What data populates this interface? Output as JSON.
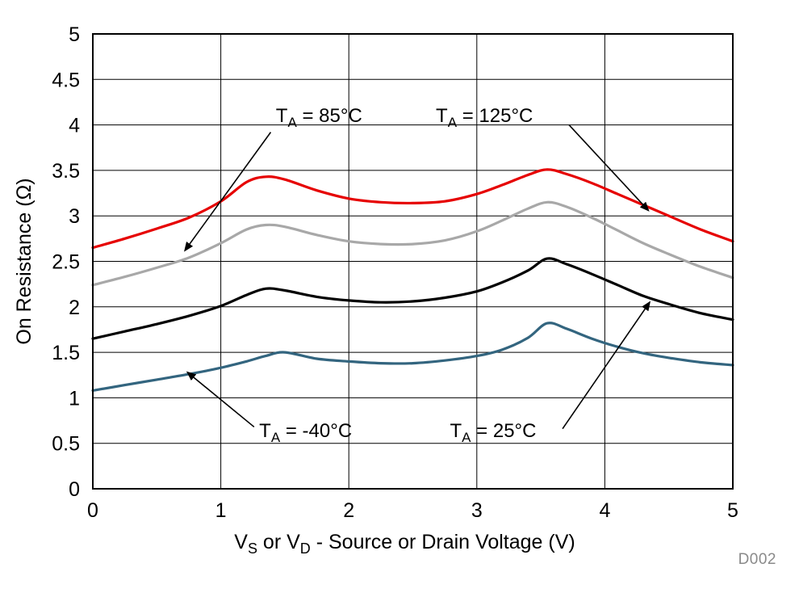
{
  "chart_data": {
    "type": "line",
    "title": "",
    "xlabel_text": "VS or VD - Source or Drain Voltage (V)",
    "xlabel_parts": [
      {
        "t": "V"
      },
      {
        "s": "S"
      },
      {
        "t": " or V"
      },
      {
        "s": "D"
      },
      {
        "t": " - Source or Drain Voltage (V)"
      }
    ],
    "ylabel": "On Resistance (Ω)",
    "xlim": [
      0,
      5
    ],
    "ylim": [
      0,
      5
    ],
    "x_ticks": [
      "0",
      "1",
      "2",
      "3",
      "4",
      "5"
    ],
    "y_ticks": [
      "0",
      "0.5",
      "1",
      "1.5",
      "2",
      "2.5",
      "3",
      "3.5",
      "4",
      "4.5",
      "5"
    ],
    "grid": {
      "x": [
        1,
        2,
        3,
        4
      ],
      "y": [
        0.5,
        1,
        1.5,
        2,
        2.5,
        3,
        3.5,
        4,
        4.5
      ]
    },
    "colors": {
      "grid": "#000000",
      "axis": "#000000",
      "annotation": "#000000",
      "watermark": "#8a8a8a"
    },
    "watermark": "D002",
    "series": [
      {
        "id": "ta-minus40",
        "name": "TA = -40°C",
        "color": "#33657f",
        "x": [
          0,
          0.25,
          0.5,
          0.75,
          1,
          1.2,
          1.35,
          1.5,
          1.75,
          2,
          2.25,
          2.5,
          2.75,
          3,
          3.2,
          3.4,
          3.55,
          3.7,
          3.9,
          4.1,
          4.3,
          4.5,
          4.75,
          5
        ],
        "y": [
          1.08,
          1.14,
          1.2,
          1.26,
          1.33,
          1.4,
          1.46,
          1.5,
          1.43,
          1.4,
          1.38,
          1.38,
          1.41,
          1.46,
          1.53,
          1.66,
          1.82,
          1.76,
          1.65,
          1.56,
          1.49,
          1.44,
          1.39,
          1.36
        ]
      },
      {
        "id": "ta-25",
        "name": "TA = 25°C",
        "color": "#000000",
        "x": [
          0,
          0.25,
          0.5,
          0.75,
          1,
          1.2,
          1.35,
          1.5,
          1.75,
          2,
          2.25,
          2.5,
          2.75,
          3,
          3.2,
          3.4,
          3.55,
          3.7,
          3.9,
          4.1,
          4.3,
          4.5,
          4.75,
          5
        ],
        "y": [
          1.65,
          1.73,
          1.81,
          1.9,
          2.01,
          2.13,
          2.2,
          2.18,
          2.11,
          2.07,
          2.05,
          2.06,
          2.1,
          2.17,
          2.27,
          2.4,
          2.53,
          2.47,
          2.36,
          2.24,
          2.12,
          2.03,
          1.93,
          1.86
        ]
      },
      {
        "id": "ta-85",
        "name": "TA = 85°C",
        "color": "#a8a8a8",
        "x": [
          0,
          0.25,
          0.5,
          0.75,
          1,
          1.2,
          1.35,
          1.5,
          1.75,
          2,
          2.25,
          2.5,
          2.75,
          3,
          3.2,
          3.4,
          3.55,
          3.7,
          3.9,
          4.1,
          4.3,
          4.5,
          4.75,
          5
        ],
        "y": [
          2.24,
          2.33,
          2.43,
          2.54,
          2.7,
          2.85,
          2.9,
          2.88,
          2.79,
          2.72,
          2.69,
          2.69,
          2.73,
          2.83,
          2.95,
          3.08,
          3.15,
          3.1,
          2.98,
          2.84,
          2.7,
          2.58,
          2.44,
          2.32
        ]
      },
      {
        "id": "ta-125",
        "name": "TA = 125°C",
        "color": "#e60000",
        "x": [
          0,
          0.25,
          0.5,
          0.75,
          1,
          1.2,
          1.35,
          1.5,
          1.75,
          2,
          2.25,
          2.5,
          2.75,
          3,
          3.2,
          3.4,
          3.55,
          3.7,
          3.9,
          4.1,
          4.3,
          4.5,
          4.75,
          5
        ],
        "y": [
          2.65,
          2.75,
          2.86,
          2.98,
          3.16,
          3.37,
          3.43,
          3.4,
          3.28,
          3.19,
          3.15,
          3.14,
          3.16,
          3.24,
          3.34,
          3.45,
          3.51,
          3.46,
          3.36,
          3.24,
          3.12,
          3.0,
          2.85,
          2.72
        ]
      }
    ],
    "annotations": [
      {
        "id": "label-85",
        "text": "TA = 85°C",
        "parts": [
          {
            "t": "T"
          },
          {
            "s": "A"
          },
          {
            "t": " = 85°C"
          }
        ],
        "x": 1.43,
        "y": 4.03,
        "anchor": "start",
        "arrow_from": [
          1.39,
          3.92
        ],
        "arrow_to": [
          0.72,
          2.62
        ]
      },
      {
        "id": "label-125",
        "text": "TA = 125°C",
        "parts": [
          {
            "t": "T"
          },
          {
            "s": "A"
          },
          {
            "t": " = 125°C"
          }
        ],
        "x": 2.68,
        "y": 4.03,
        "anchor": "start",
        "arrow_from": [
          3.72,
          4.0
        ],
        "arrow_to": [
          4.34,
          3.06
        ]
      },
      {
        "id": "label-minus40",
        "text": "TA = -40°C",
        "parts": [
          {
            "t": "T"
          },
          {
            "s": "A"
          },
          {
            "t": " = -40°C"
          }
        ],
        "x": 1.3,
        "y": 0.57,
        "anchor": "start",
        "arrow_from": [
          1.26,
          0.68
        ],
        "arrow_to": [
          0.74,
          1.28
        ]
      },
      {
        "id": "label-25",
        "text": "TA = 25°C",
        "parts": [
          {
            "t": "T"
          },
          {
            "s": "A"
          },
          {
            "t": " = 25°C"
          }
        ],
        "x": 2.79,
        "y": 0.57,
        "anchor": "start",
        "arrow_from": [
          3.67,
          0.66
        ],
        "arrow_to": [
          4.35,
          2.05
        ]
      }
    ]
  }
}
